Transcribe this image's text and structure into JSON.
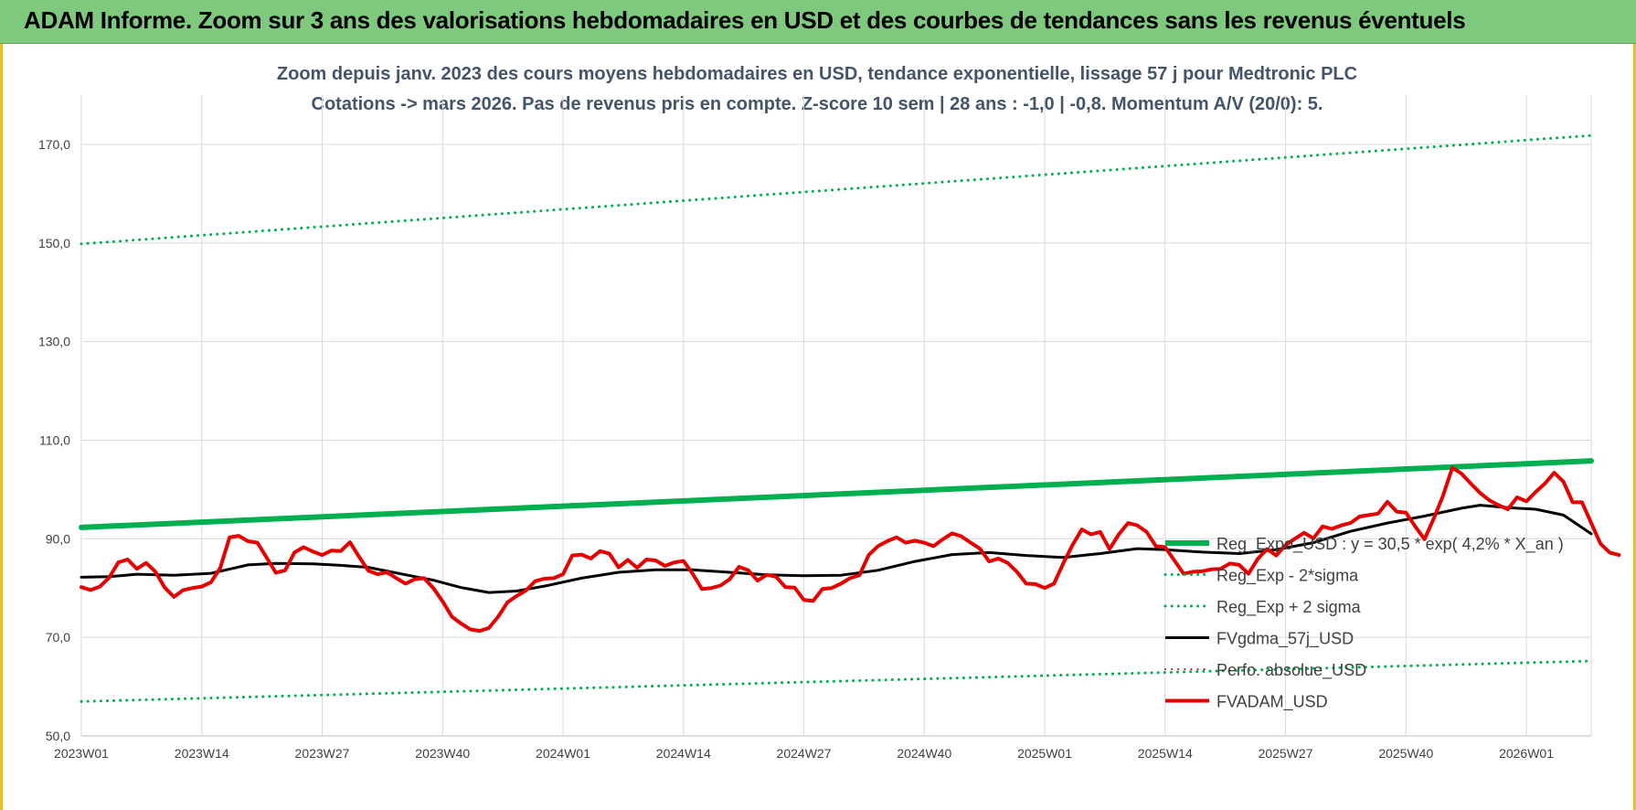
{
  "banner": {
    "title": "ADAM Informe. Zoom sur 3 ans des valorisations hebdomadaires en USD et des courbes de tendances sans les revenus éventuels"
  },
  "chart_data": {
    "type": "line",
    "title_line1": "Zoom depuis janv. 2023 des cours moyens hebdomadaires en USD, tendance exponentielle, lissage 57 j pour Medtronic PLC",
    "title_line2": "Cotations -> mars 2026. Pas de revenus pris en compte. Z-score 10 sem | 28 ans : -1,0 | -0,8. Momentum A/V (20/0): 5.",
    "ylim": [
      50,
      180
    ],
    "yticks": [
      {
        "v": 50,
        "label": "50,0"
      },
      {
        "v": 70,
        "label": "70,0"
      },
      {
        "v": 90,
        "label": "90,0"
      },
      {
        "v": 110,
        "label": "110,0"
      },
      {
        "v": 130,
        "label": "130,0"
      },
      {
        "v": 150,
        "label": "150,0"
      },
      {
        "v": 170,
        "label": "170,0"
      }
    ],
    "grid": true,
    "x_range_weeks": [
      0,
      163
    ],
    "xticks": [
      {
        "w": 0,
        "label": "2023W01"
      },
      {
        "w": 13,
        "label": "2023W14"
      },
      {
        "w": 26,
        "label": "2023W27"
      },
      {
        "w": 39,
        "label": "2023W40"
      },
      {
        "w": 52,
        "label": "2024W01"
      },
      {
        "w": 65,
        "label": "2024W14"
      },
      {
        "w": 78,
        "label": "2024W27"
      },
      {
        "w": 91,
        "label": "2024W40"
      },
      {
        "w": 104,
        "label": "2025W01"
      },
      {
        "w": 117,
        "label": "2025W14"
      },
      {
        "w": 130,
        "label": "2025W27"
      },
      {
        "w": 143,
        "label": "2025W40"
      },
      {
        "w": 156,
        "label": "2026W01"
      }
    ],
    "legend_position": "right",
    "series": [
      {
        "name": "Reg_Expo_USD : y = 30,5 * exp( 4,2% *  X_an )",
        "color": "#00b050",
        "style": "solid",
        "width": 6,
        "points": [
          [
            0,
            92.3
          ],
          [
            163,
            105.8
          ]
        ]
      },
      {
        "name": "Reg_Exp - 2*sigma",
        "color": "#00b050",
        "style": "dotted",
        "width": 3,
        "points": [
          [
            0,
            57.0
          ],
          [
            163,
            65.2
          ]
        ]
      },
      {
        "name": "Reg_Exp + 2 sigma",
        "color": "#00b050",
        "style": "dotted",
        "width": 3,
        "points": [
          [
            0,
            149.8
          ],
          [
            163,
            171.8
          ]
        ]
      },
      {
        "name": "FVgdma_57j_USD",
        "color": "#000000",
        "style": "solid",
        "width": 3,
        "points": [
          [
            0,
            82.2
          ],
          [
            3,
            82.3
          ],
          [
            6,
            82.8
          ],
          [
            10,
            82.6
          ],
          [
            14,
            83.0
          ],
          [
            18,
            84.7
          ],
          [
            21,
            85.0
          ],
          [
            25,
            84.9
          ],
          [
            28,
            84.6
          ],
          [
            31,
            84.2
          ],
          [
            35,
            82.7
          ],
          [
            38,
            81.6
          ],
          [
            41,
            80.1
          ],
          [
            44,
            79.1
          ],
          [
            47,
            79.4
          ],
          [
            50,
            80.4
          ],
          [
            54,
            82.0
          ],
          [
            58,
            83.2
          ],
          [
            62,
            83.7
          ],
          [
            66,
            83.7
          ],
          [
            70,
            83.2
          ],
          [
            74,
            82.7
          ],
          [
            78,
            82.5
          ],
          [
            82,
            82.6
          ],
          [
            86,
            83.6
          ],
          [
            90,
            85.4
          ],
          [
            94,
            86.8
          ],
          [
            98,
            87.2
          ],
          [
            102,
            86.6
          ],
          [
            106,
            86.2
          ],
          [
            110,
            87.0
          ],
          [
            114,
            88.0
          ],
          [
            117,
            87.8
          ],
          [
            121,
            87.3
          ],
          [
            125,
            87.0
          ],
          [
            129,
            87.8
          ],
          [
            133,
            89.2
          ],
          [
            137,
            91.5
          ],
          [
            141,
            93.2
          ],
          [
            145,
            94.6
          ],
          [
            149,
            96.2
          ],
          [
            151,
            96.8
          ],
          [
            154,
            96.3
          ],
          [
            157,
            96.0
          ],
          [
            160,
            94.8
          ],
          [
            163,
            91.0
          ]
        ]
      },
      {
        "name": "Perfo. absolue_USD",
        "color": "#c00000",
        "style": "dotted",
        "width": 2,
        "points": []
      },
      {
        "name": "FVADAM_USD",
        "color": "#e60000",
        "style": "solid",
        "width": 4,
        "points": [
          [
            0,
            80.2
          ],
          [
            1,
            79.6
          ],
          [
            2,
            80.3
          ],
          [
            3,
            82.1
          ],
          [
            4,
            85.2
          ],
          [
            5,
            85.8
          ],
          [
            6,
            83.9
          ],
          [
            7,
            85.1
          ],
          [
            8,
            83.3
          ],
          [
            9,
            80.1
          ],
          [
            10,
            78.2
          ],
          [
            11,
            79.6
          ],
          [
            12,
            80.0
          ],
          [
            13,
            80.3
          ],
          [
            14,
            81.2
          ],
          [
            15,
            84.1
          ],
          [
            16,
            90.3
          ],
          [
            17,
            90.6
          ],
          [
            18,
            89.5
          ],
          [
            19,
            89.2
          ],
          [
            20,
            86.2
          ],
          [
            21,
            83.1
          ],
          [
            22,
            83.6
          ],
          [
            23,
            87.2
          ],
          [
            24,
            88.3
          ],
          [
            25,
            87.4
          ],
          [
            26,
            86.7
          ],
          [
            27,
            87.6
          ],
          [
            28,
            87.5
          ],
          [
            29,
            89.3
          ],
          [
            30,
            86.3
          ],
          [
            31,
            83.5
          ],
          [
            32,
            82.8
          ],
          [
            33,
            83.2
          ],
          [
            34,
            82.0
          ],
          [
            35,
            80.9
          ],
          [
            36,
            81.8
          ],
          [
            37,
            82.0
          ],
          [
            38,
            80.0
          ],
          [
            39,
            77.3
          ],
          [
            40,
            74.2
          ],
          [
            41,
            72.8
          ],
          [
            42,
            71.6
          ],
          [
            43,
            71.3
          ],
          [
            44,
            71.9
          ],
          [
            45,
            74.2
          ],
          [
            46,
            77.1
          ],
          [
            47,
            78.4
          ],
          [
            48,
            79.5
          ],
          [
            49,
            81.4
          ],
          [
            50,
            81.9
          ],
          [
            51,
            82.0
          ],
          [
            52,
            82.8
          ],
          [
            53,
            86.6
          ],
          [
            54,
            86.8
          ],
          [
            55,
            86.0
          ],
          [
            56,
            87.5
          ],
          [
            57,
            87.0
          ],
          [
            58,
            84.2
          ],
          [
            59,
            85.7
          ],
          [
            60,
            84.1
          ],
          [
            61,
            85.8
          ],
          [
            62,
            85.6
          ],
          [
            63,
            84.5
          ],
          [
            64,
            85.2
          ],
          [
            65,
            85.5
          ],
          [
            66,
            82.9
          ],
          [
            67,
            79.8
          ],
          [
            68,
            80.0
          ],
          [
            69,
            80.5
          ],
          [
            70,
            81.8
          ],
          [
            71,
            84.3
          ],
          [
            72,
            83.6
          ],
          [
            73,
            81.5
          ],
          [
            74,
            82.7
          ],
          [
            75,
            82.3
          ],
          [
            76,
            80.2
          ],
          [
            77,
            80.1
          ],
          [
            78,
            77.6
          ],
          [
            79,
            77.4
          ],
          [
            80,
            79.8
          ],
          [
            81,
            80.0
          ],
          [
            82,
            80.9
          ],
          [
            83,
            82.0
          ],
          [
            84,
            82.6
          ],
          [
            85,
            86.7
          ],
          [
            86,
            88.5
          ],
          [
            87,
            89.5
          ],
          [
            88,
            90.3
          ],
          [
            89,
            89.2
          ],
          [
            90,
            89.6
          ],
          [
            91,
            89.2
          ],
          [
            92,
            88.5
          ],
          [
            93,
            89.9
          ],
          [
            94,
            91.1
          ],
          [
            95,
            90.5
          ],
          [
            96,
            89.2
          ],
          [
            97,
            88.0
          ],
          [
            98,
            85.4
          ],
          [
            99,
            86.0
          ],
          [
            100,
            85.1
          ],
          [
            101,
            83.3
          ],
          [
            102,
            80.9
          ],
          [
            103,
            80.8
          ],
          [
            104,
            80.0
          ],
          [
            105,
            80.9
          ],
          [
            106,
            85.0
          ],
          [
            107,
            88.7
          ],
          [
            108,
            91.9
          ],
          [
            109,
            90.9
          ],
          [
            110,
            91.4
          ],
          [
            111,
            87.9
          ],
          [
            112,
            90.9
          ],
          [
            113,
            93.2
          ],
          [
            114,
            92.7
          ],
          [
            115,
            91.4
          ],
          [
            116,
            88.5
          ],
          [
            117,
            88.3
          ],
          [
            118,
            85.6
          ],
          [
            119,
            82.9
          ],
          [
            120,
            83.3
          ],
          [
            121,
            83.4
          ],
          [
            122,
            83.8
          ],
          [
            123,
            83.9
          ],
          [
            124,
            85.0
          ],
          [
            125,
            84.7
          ],
          [
            126,
            82.9
          ],
          [
            127,
            85.9
          ],
          [
            128,
            87.9
          ],
          [
            129,
            86.6
          ],
          [
            130,
            88.7
          ],
          [
            131,
            90.0
          ],
          [
            132,
            91.2
          ],
          [
            133,
            90.1
          ],
          [
            134,
            92.5
          ],
          [
            135,
            92.0
          ],
          [
            136,
            92.7
          ],
          [
            137,
            93.2
          ],
          [
            138,
            94.5
          ],
          [
            139,
            94.8
          ],
          [
            140,
            95.1
          ],
          [
            141,
            97.5
          ],
          [
            142,
            95.5
          ],
          [
            143,
            95.3
          ],
          [
            144,
            92.5
          ],
          [
            145,
            89.9
          ],
          [
            146,
            94.1
          ],
          [
            147,
            98.7
          ],
          [
            148,
            104.4
          ],
          [
            149,
            103.2
          ],
          [
            150,
            101.2
          ],
          [
            151,
            99.3
          ],
          [
            152,
            97.8
          ],
          [
            153,
            96.8
          ],
          [
            154,
            96.0
          ],
          [
            155,
            98.4
          ],
          [
            156,
            97.6
          ],
          [
            157,
            99.5
          ],
          [
            158,
            101.2
          ],
          [
            159,
            103.4
          ],
          [
            160,
            101.6
          ],
          [
            161,
            97.4
          ],
          [
            162,
            97.4
          ],
          [
            163,
            93.2
          ],
          [
            164,
            89.0
          ],
          [
            165,
            87.2
          ],
          [
            166,
            86.7
          ]
        ]
      }
    ]
  }
}
